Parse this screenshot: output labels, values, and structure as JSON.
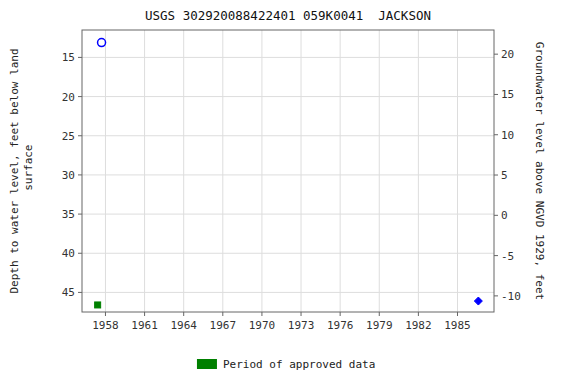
{
  "chart_data": {
    "type": "scatter",
    "title": "USGS 302920088422401 059K0041  JACKSON",
    "ylabel": "Depth to water level, feet below land\n surface",
    "y2label": "Groundwater level above NGVD 1929, feet",
    "ylim": [
      47.5,
      11.5
    ],
    "yticks": [
      15,
      20,
      25,
      30,
      35,
      40,
      45
    ],
    "y2lim": [
      -12.0,
      23.0
    ],
    "y2ticks": [
      -10,
      -5,
      0,
      5,
      10,
      15,
      20
    ],
    "xlim": [
      1956.2,
      1987.8
    ],
    "xticks": [
      1958,
      1961,
      1964,
      1967,
      1970,
      1973,
      1976,
      1979,
      1982,
      1985
    ],
    "grid": true,
    "legend": "bottom",
    "series": [
      {
        "color": "blue",
        "marker": "circle",
        "x": [
          1957.7
        ],
        "values": [
          13.1
        ]
      },
      {
        "color": "blue",
        "marker": "diamond",
        "x": [
          1986.6
        ],
        "values": [
          46.1
        ]
      },
      {
        "name": "Period of approved data",
        "color": "#008000",
        "marker": "square",
        "x": [
          1957.4
        ],
        "values": [
          46.6
        ]
      }
    ]
  }
}
